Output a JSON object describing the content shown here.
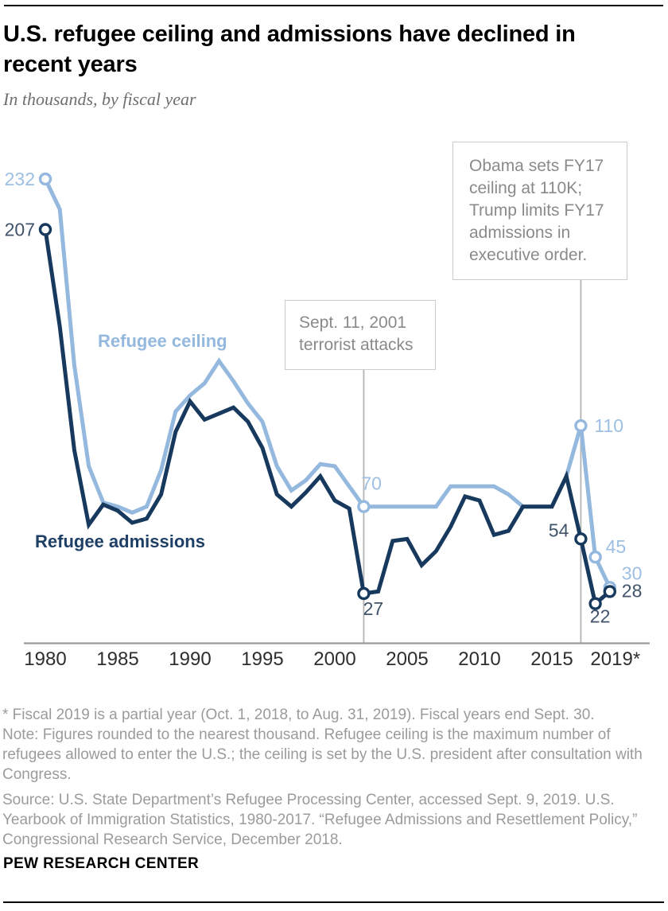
{
  "header": {
    "title": "U.S. refugee ceiling and admissions have declined in recent years",
    "subtitle": "In thousands, by fiscal year"
  },
  "chart_data": {
    "type": "line",
    "title": "U.S. refugee ceiling and admissions have declined in recent years",
    "units": "thousands",
    "xlabel": "fiscal year",
    "ylabel": "",
    "ylim": [
      0,
      240
    ],
    "grid": false,
    "legend_position": "inline labels on lines",
    "x": [
      1980,
      1981,
      1982,
      1983,
      1984,
      1985,
      1986,
      1987,
      1988,
      1989,
      1990,
      1991,
      1992,
      1993,
      1994,
      1995,
      1996,
      1997,
      1998,
      1999,
      2000,
      2001,
      2002,
      2003,
      2004,
      2005,
      2006,
      2007,
      2008,
      2009,
      2010,
      2011,
      2012,
      2013,
      2014,
      2015,
      2016,
      2017,
      2018,
      2019
    ],
    "series": [
      {
        "name": "Refugee ceiling",
        "color": "#94b8de",
        "label_color": "#9dbfe3",
        "values": [
          232,
          217,
          140,
          90,
          72,
          70,
          67,
          70,
          88,
          117,
          125,
          131,
          142,
          132,
          121,
          112,
          90,
          78,
          83,
          91,
          90,
          80,
          70,
          70,
          70,
          70,
          70,
          70,
          80,
          80,
          80,
          80,
          76,
          70,
          70,
          70,
          85,
          110,
          45,
          30
        ],
        "marker_years": [
          1980,
          2002,
          2017,
          2018,
          2019
        ]
      },
      {
        "name": "Refugee admissions",
        "color": "#17395e",
        "label_color": "#40536a",
        "values": [
          207,
          159,
          98,
          61,
          71,
          68,
          62,
          64,
          76,
          107,
          122,
          113,
          116,
          119,
          112,
          99,
          76,
          70,
          77,
          85,
          73,
          69,
          27,
          28,
          53,
          54,
          41,
          48,
          60,
          75,
          73,
          56,
          58,
          70,
          70,
          70,
          85,
          54,
          22,
          28
        ],
        "marker_years": [
          1980,
          2002,
          2017,
          2018,
          2019
        ]
      }
    ],
    "point_labels": [
      {
        "series": 0,
        "year": 1980,
        "text": "232"
      },
      {
        "series": 1,
        "year": 1980,
        "text": "207"
      },
      {
        "series": 0,
        "year": 2002,
        "text": "70"
      },
      {
        "series": 1,
        "year": 2002,
        "text": "27"
      },
      {
        "series": 0,
        "year": 2017,
        "text": "110"
      },
      {
        "series": 1,
        "year": 2017,
        "text": "54"
      },
      {
        "series": 0,
        "year": 2018,
        "text": "45"
      },
      {
        "series": 1,
        "year": 2018,
        "text": "22"
      },
      {
        "series": 0,
        "year": 2019,
        "text": "30"
      },
      {
        "series": 1,
        "year": 2019,
        "text": "28"
      }
    ],
    "x_ticks": [
      {
        "label": "1980",
        "year": 1980
      },
      {
        "label": "1985",
        "year": 1985
      },
      {
        "label": "1990",
        "year": 1990
      },
      {
        "label": "1995",
        "year": 1995
      },
      {
        "label": "2000",
        "year": 2000
      },
      {
        "label": "2005",
        "year": 2005
      },
      {
        "label": "2010",
        "year": 2010
      },
      {
        "label": "2015",
        "year": 2015
      },
      {
        "label": "2019*",
        "year": 2019
      }
    ],
    "annotations": [
      {
        "text": "Sept. 11, 2001 terrorist attacks",
        "year": 2002
      },
      {
        "text": "Obama sets FY17 ceiling at 110K; Trump limits FY17 admissions in executive order.",
        "year": 2017
      }
    ],
    "axis_color": "#9b9b9b",
    "annotation_line_color": "#b3b3b3"
  },
  "footnotes": {
    "asterisk": "* Fiscal 2019 is a partial year (Oct. 1, 2018, to Aug. 31, 2019). Fiscal years end Sept. 30.",
    "note": "Note: Figures rounded to the nearest thousand. Refugee ceiling is the maximum number of refugees allowed to enter the U.S.; the ceiling is set by the U.S. president after consultation with Congress.",
    "source": "Source: U.S. State Department’s Refugee Processing Center, accessed Sept. 9, 2019. U.S. Yearbook of Immigration Statistics, 1980-2017. “Refugee Admissions and Resettlement Policy,” Congressional Research Service, December 2018."
  },
  "footer": {
    "branding": "PEW RESEARCH CENTER"
  }
}
